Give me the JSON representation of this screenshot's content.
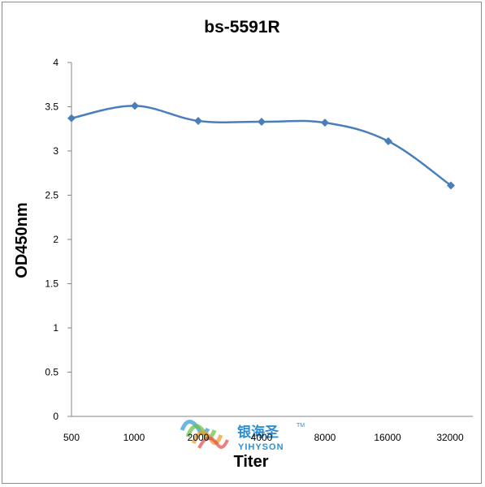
{
  "chart_data": {
    "type": "line",
    "title": "bs-5591R",
    "xlabel": "Titer",
    "ylabel": "OD450nm",
    "categories": [
      "500",
      "1000",
      "2000",
      "4000",
      "8000",
      "16000",
      "32000"
    ],
    "series": [
      {
        "values": [
          3.37,
          3.51,
          3.34,
          3.33,
          3.32,
          3.11,
          2.61
        ],
        "color": "#4a7ebb",
        "marker": "diamond"
      }
    ],
    "ylim": [
      0,
      4
    ],
    "yticks": [
      "0",
      "0.5",
      "1",
      "1.5",
      "2",
      "2.5",
      "3",
      "3.5",
      "4"
    ],
    "grid": false,
    "legend": "none",
    "smooth": true
  },
  "watermark": {
    "text_cn": "银海圣",
    "text_en": "YIHYSON",
    "trademark": "TM",
    "colors": [
      "#3aa0e0",
      "#6cc24a",
      "#f0a030",
      "#e04848"
    ]
  }
}
